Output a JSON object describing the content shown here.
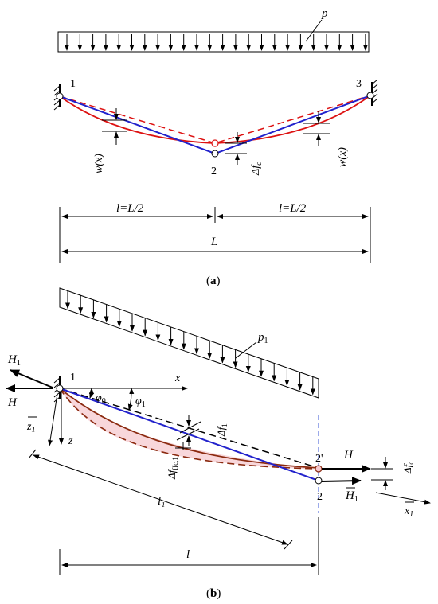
{
  "panel_a": {
    "load_label": "p",
    "node_1": "1",
    "node_2": "2",
    "node_3": "3",
    "deflection_left": "w(x)",
    "deflection_right": "w(x)",
    "center_delta_prefix": "Δf",
    "center_delta_sub": "c",
    "dim_half_left": "l=L/2",
    "dim_half_right": "l=L/2",
    "dim_total": "L",
    "caption_open": "(",
    "caption_letter": "a",
    "caption_close": ")"
  },
  "panel_b": {
    "load_main": "p",
    "load_sub": "1",
    "force_h1_main": "H",
    "force_h1_sub": "1",
    "force_h": "H",
    "node_1": "1",
    "axis_x": "x",
    "angle_phi0_main": "φ",
    "angle_phi0_sub": "0",
    "angle_phi1_main": "φ",
    "angle_phi1_sub": "1",
    "axis_z1_main": "z",
    "axis_z1_sub": "1",
    "axis_z": "z",
    "delta_f1_prefix": "Δf",
    "delta_f1_sub": "1",
    "delta_ffc_prefix": "Δf",
    "delta_ffc_sub": "ffc,1",
    "node_2_prime": "2'",
    "node_2": "2",
    "force_h_right": "H",
    "force_hbar1_main": "H",
    "force_hbar1_sub": "1",
    "delta_fc_prefix": "Δf",
    "delta_fc_sub": "c",
    "axis_x1_main": "x",
    "axis_x1_sub": "1",
    "dim_l1": "l₁",
    "dim_l": "l",
    "caption_open": "(",
    "caption_letter": "b",
    "caption_close": ")"
  },
  "colors": {
    "blue_line": "#2222cc",
    "red_line": "#dd1111",
    "brown_line": "#8b2a10",
    "pink_fill": "#f6c9cf",
    "dashed_blue": "#3a55d6"
  }
}
